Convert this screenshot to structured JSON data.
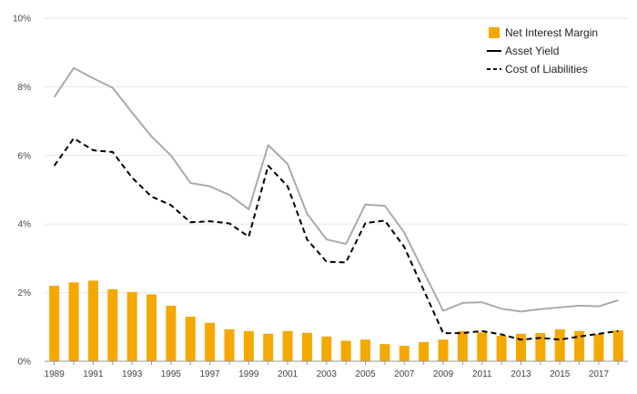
{
  "chart_data": {
    "type": "bar+line",
    "x": [
      1989,
      1990,
      1991,
      1992,
      1993,
      1994,
      1995,
      1996,
      1997,
      1998,
      1999,
      2000,
      2001,
      2002,
      2003,
      2004,
      2005,
      2006,
      2007,
      2008,
      2009,
      2010,
      2011,
      2012,
      2013,
      2014,
      2015,
      2016,
      2017,
      2018
    ],
    "x_tick_labels": [
      "1989",
      "1991",
      "1993",
      "1995",
      "1997",
      "1999",
      "2001",
      "2003",
      "2005",
      "2007",
      "2009",
      "2011",
      "2013",
      "2015",
      "2017"
    ],
    "y_tick_labels": [
      "0%",
      "2%",
      "4%",
      "6%",
      "8%",
      "10%"
    ],
    "ylim": [
      0,
      10
    ],
    "grid": true,
    "legend_position": "top-right",
    "series": [
      {
        "name": "Net Interest Margin",
        "kind": "bar",
        "color": "#F5A800",
        "values": [
          2.2,
          2.3,
          2.35,
          2.1,
          2.02,
          1.95,
          1.62,
          1.3,
          1.12,
          0.93,
          0.88,
          0.8,
          0.88,
          0.83,
          0.72,
          0.6,
          0.63,
          0.5,
          0.45,
          0.56,
          0.63,
          0.88,
          0.84,
          0.74,
          0.8,
          0.82,
          0.93,
          0.88,
          0.8,
          0.9
        ]
      },
      {
        "name": "Asset Yield",
        "kind": "line",
        "color": "#aaaaaa",
        "values": [
          7.7,
          8.55,
          8.25,
          7.97,
          7.25,
          6.55,
          6.0,
          5.2,
          5.1,
          4.85,
          4.43,
          6.3,
          5.75,
          4.3,
          3.55,
          3.42,
          4.57,
          4.53,
          3.75,
          2.6,
          1.47,
          1.7,
          1.72,
          1.53,
          1.45,
          1.52,
          1.57,
          1.62,
          1.6,
          1.78
        ]
      },
      {
        "name": "Cost of Liabilities",
        "kind": "line",
        "style": "dashed",
        "color": "#000000",
        "values": [
          5.7,
          6.5,
          6.15,
          6.1,
          5.35,
          4.8,
          4.55,
          4.05,
          4.08,
          4.02,
          3.63,
          5.7,
          5.1,
          3.55,
          2.9,
          2.88,
          4.03,
          4.1,
          3.33,
          2.07,
          0.82,
          0.82,
          0.88,
          0.78,
          0.63,
          0.68,
          0.63,
          0.72,
          0.8,
          0.88
        ]
      }
    ]
  }
}
